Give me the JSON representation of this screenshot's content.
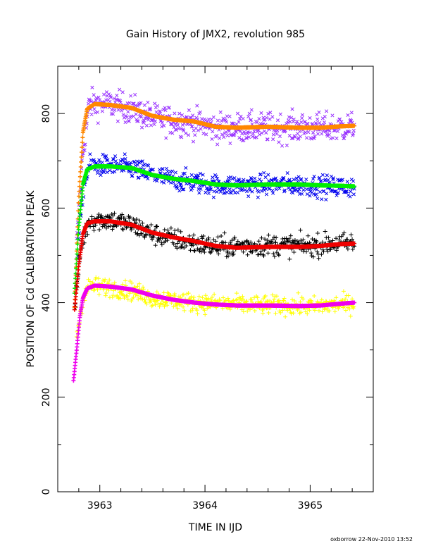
{
  "chart_data": {
    "type": "scatter",
    "title": "Gain History of JMX2, revolution 985",
    "xlabel": "TIME IN IJD",
    "ylabel": "POSITION OF Cd CALIBRATION PEAK",
    "xlim": [
      3962.6,
      3965.6
    ],
    "ylim": [
      0,
      900
    ],
    "x_ticks": [
      3963,
      3964,
      3965
    ],
    "x_tick_labels": [
      "3963",
      "3964",
      "3965"
    ],
    "y_ticks": [
      0,
      200,
      400,
      600,
      800
    ],
    "y_tick_labels": [
      "0",
      "200",
      "400",
      "600",
      "800"
    ],
    "grid": false,
    "legend": "none",
    "series": [
      {
        "marker": "x",
        "color": "#9933ff",
        "scatter": 22,
        "points": [
          [
            3962.78,
            520
          ],
          [
            3962.84,
            720
          ],
          [
            3962.9,
            820
          ],
          [
            3963.1,
            820
          ],
          [
            3963.3,
            810
          ],
          [
            3963.5,
            790
          ],
          [
            3963.7,
            785
          ],
          [
            3963.9,
            780
          ],
          [
            3964.1,
            770
          ],
          [
            3964.4,
            770
          ],
          [
            3964.7,
            770
          ],
          [
            3965.0,
            770
          ],
          [
            3965.2,
            770
          ],
          [
            3965.42,
            772
          ]
        ]
      },
      {
        "marker": "x",
        "color": "#0000ee",
        "scatter": 16,
        "points": [
          [
            3962.78,
            480
          ],
          [
            3962.84,
            640
          ],
          [
            3962.9,
            690
          ],
          [
            3963.1,
            690
          ],
          [
            3963.3,
            685
          ],
          [
            3963.5,
            670
          ],
          [
            3963.7,
            660
          ],
          [
            3963.9,
            655
          ],
          [
            3964.1,
            648
          ],
          [
            3964.4,
            648
          ],
          [
            3964.7,
            650
          ],
          [
            3965.0,
            648
          ],
          [
            3965.2,
            645
          ],
          [
            3965.42,
            645
          ]
        ]
      },
      {
        "marker": "+",
        "color": "#000000",
        "scatter": 16,
        "points": [
          [
            3962.76,
            380
          ],
          [
            3962.82,
            520
          ],
          [
            3962.9,
            575
          ],
          [
            3963.1,
            575
          ],
          [
            3963.3,
            565
          ],
          [
            3963.5,
            545
          ],
          [
            3963.7,
            535
          ],
          [
            3963.9,
            525
          ],
          [
            3964.1,
            518
          ],
          [
            3964.4,
            520
          ],
          [
            3964.7,
            522
          ],
          [
            3965.0,
            520
          ],
          [
            3965.2,
            525
          ],
          [
            3965.42,
            525
          ]
        ]
      },
      {
        "marker": "+",
        "color": "#ffff00",
        "scatter": 14,
        "points": [
          [
            3962.78,
            330
          ],
          [
            3962.84,
            410
          ],
          [
            3962.9,
            435
          ],
          [
            3963.1,
            432
          ],
          [
            3963.3,
            425
          ],
          [
            3963.5,
            410
          ],
          [
            3963.7,
            405
          ],
          [
            3963.9,
            400
          ],
          [
            3964.1,
            398
          ],
          [
            3964.4,
            395
          ],
          [
            3964.7,
            395
          ],
          [
            3965.0,
            392
          ],
          [
            3965.2,
            395
          ],
          [
            3965.42,
            398
          ]
        ]
      },
      {
        "marker": "+",
        "color": "#ff8800",
        "scatter": 0,
        "points": [
          [
            3962.76,
            390
          ],
          [
            3962.8,
            620
          ],
          [
            3962.84,
            760
          ],
          [
            3962.88,
            810
          ],
          [
            3962.95,
            820
          ],
          [
            3963.1,
            818
          ],
          [
            3963.3,
            812
          ],
          [
            3963.5,
            795
          ],
          [
            3963.7,
            787
          ],
          [
            3963.9,
            783
          ],
          [
            3964.1,
            772
          ],
          [
            3964.3,
            770
          ],
          [
            3964.6,
            772
          ],
          [
            3964.9,
            770
          ],
          [
            3965.1,
            770
          ],
          [
            3965.3,
            773
          ],
          [
            3965.42,
            774
          ]
        ]
      },
      {
        "marker": "+",
        "color": "#00ee00",
        "scatter": 0,
        "points": [
          [
            3962.76,
            420
          ],
          [
            3962.8,
            560
          ],
          [
            3962.84,
            650
          ],
          [
            3962.88,
            682
          ],
          [
            3962.95,
            688
          ],
          [
            3963.1,
            688
          ],
          [
            3963.3,
            685
          ],
          [
            3963.5,
            670
          ],
          [
            3963.7,
            662
          ],
          [
            3963.9,
            657
          ],
          [
            3964.1,
            650
          ],
          [
            3964.3,
            648
          ],
          [
            3964.6,
            650
          ],
          [
            3964.9,
            650
          ],
          [
            3965.1,
            648
          ],
          [
            3965.3,
            647
          ],
          [
            3965.42,
            646
          ]
        ]
      },
      {
        "marker": "+",
        "color": "#ee0000",
        "scatter": 0,
        "points": [
          [
            3962.76,
            385
          ],
          [
            3962.8,
            480
          ],
          [
            3962.84,
            545
          ],
          [
            3962.88,
            568
          ],
          [
            3962.95,
            572
          ],
          [
            3963.1,
            572
          ],
          [
            3963.3,
            565
          ],
          [
            3963.5,
            548
          ],
          [
            3963.7,
            538
          ],
          [
            3963.9,
            530
          ],
          [
            3964.1,
            520
          ],
          [
            3964.3,
            516
          ],
          [
            3964.6,
            518
          ],
          [
            3964.9,
            518
          ],
          [
            3965.1,
            520
          ],
          [
            3965.3,
            524
          ],
          [
            3965.42,
            525
          ]
        ]
      },
      {
        "marker": "+",
        "color": "#ee00ee",
        "scatter": 0,
        "points": [
          [
            3962.75,
            235
          ],
          [
            3962.78,
            300
          ],
          [
            3962.81,
            370
          ],
          [
            3962.84,
            410
          ],
          [
            3962.88,
            430
          ],
          [
            3962.95,
            436
          ],
          [
            3963.1,
            434
          ],
          [
            3963.3,
            428
          ],
          [
            3963.5,
            415
          ],
          [
            3963.7,
            406
          ],
          [
            3963.9,
            400
          ],
          [
            3964.1,
            396
          ],
          [
            3964.3,
            394
          ],
          [
            3964.6,
            394
          ],
          [
            3964.9,
            393
          ],
          [
            3965.1,
            394
          ],
          [
            3965.3,
            398
          ],
          [
            3965.42,
            400
          ]
        ]
      }
    ]
  },
  "footer": {
    "credit": "oxborrow 22-Nov-2010 13:52"
  }
}
